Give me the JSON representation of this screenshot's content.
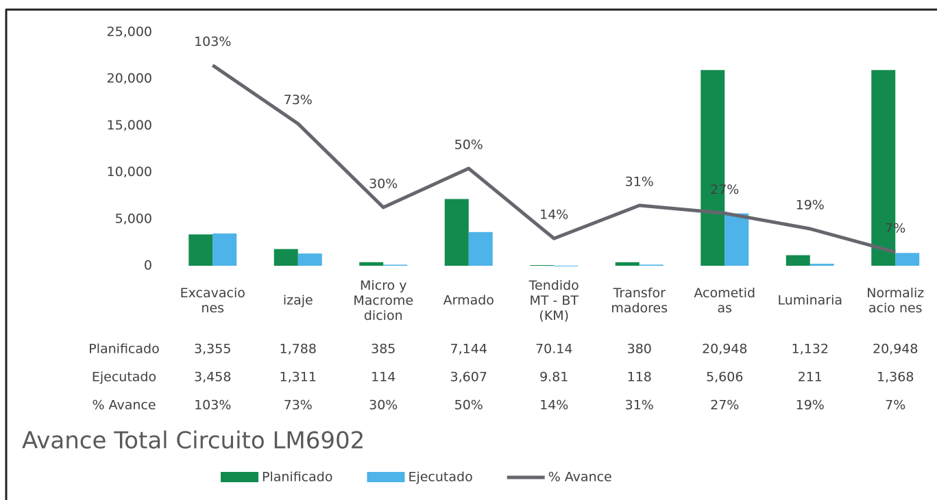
{
  "chart_data": {
    "type": "bar-line",
    "title": "Avance Total Circuito LM6902",
    "categories": [
      "Excavacio\nnes",
      "izaje",
      "Micro y\nMacrome\ndicion",
      "Armado",
      "Tendido\nMT - BT\n(KM)",
      "Transfor\nmadores",
      "Acometid\nas",
      "Luminaria",
      "Normaliz\nacio nes"
    ],
    "series": [
      {
        "name": "Planificado",
        "color": "#138b4f",
        "kind": "bar",
        "values": [
          3355,
          1788,
          385,
          7144,
          70.14,
          380,
          20948,
          1132,
          20948
        ],
        "value_labels": [
          "3,355",
          "1,788",
          "385",
          "7,144",
          "70.14",
          "380",
          "20,948",
          "1,132",
          "20,948"
        ]
      },
      {
        "name": "Ejecutado",
        "color": "#4db3e8",
        "kind": "bar",
        "values": [
          3458,
          1311,
          114,
          3607,
          9.81,
          118,
          5606,
          211,
          1368
        ],
        "value_labels": [
          "3,458",
          "1,311",
          "114",
          "3,607",
          "9.81",
          "118",
          "5,606",
          "211",
          "1,368"
        ]
      },
      {
        "name": "% Avance",
        "color": "#66666e",
        "kind": "line",
        "axis": "y2",
        "values": [
          103,
          73,
          30,
          50,
          14,
          31,
          27,
          19,
          7
        ],
        "value_labels": [
          "103%",
          "73%",
          "30%",
          "50%",
          "14%",
          "31%",
          "27%",
          "19%",
          "7%"
        ]
      }
    ],
    "ylim": [
      0,
      25000
    ],
    "yticks": [
      {
        "value": 0,
        "label": "0"
      },
      {
        "value": 5000,
        "label": "5,000"
      },
      {
        "value": 10000,
        "label": "10,000"
      },
      {
        "value": 15000,
        "label": "15,000"
      },
      {
        "value": 20000,
        "label": "20,000"
      },
      {
        "value": 25000,
        "label": "25,000"
      }
    ],
    "y2lim": [
      0,
      120
    ],
    "legend": "bottom"
  }
}
